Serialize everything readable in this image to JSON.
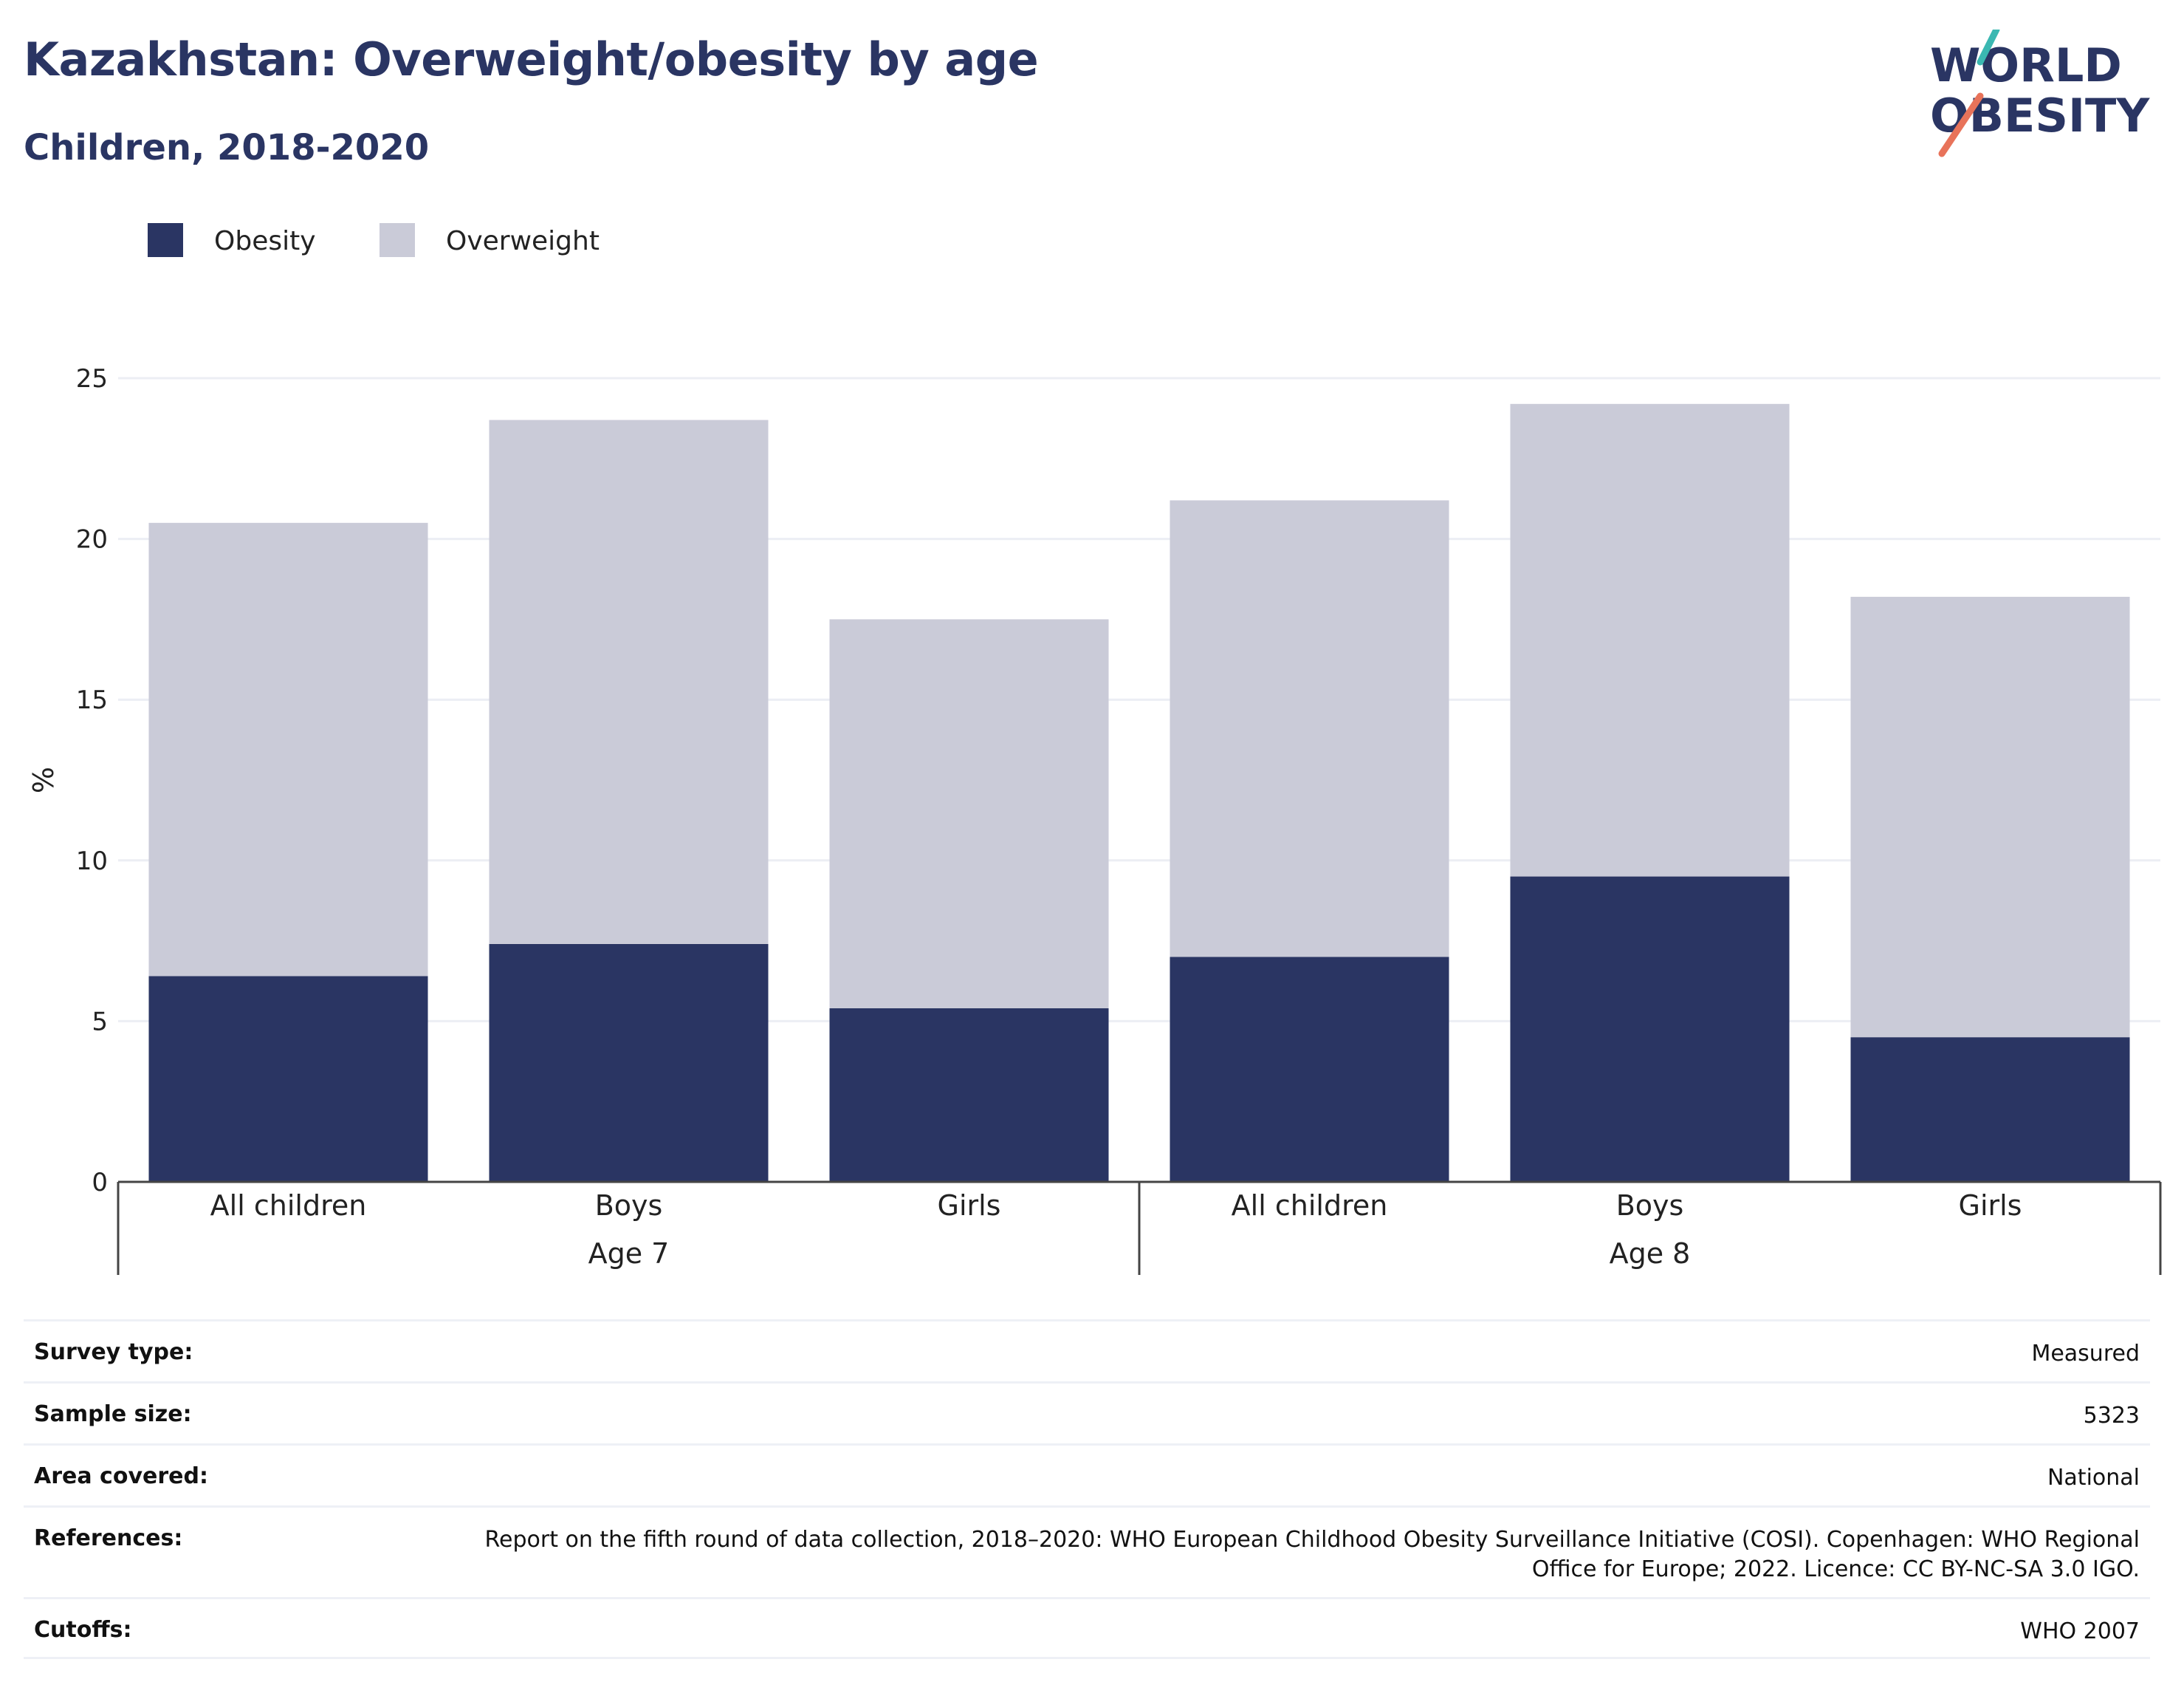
{
  "header": {
    "title": "Kazakhstan: Overweight/obesity by age",
    "subtitle": "Children, 2018-2020"
  },
  "logo": {
    "line1": "WORLD",
    "line2": "OBESITY",
    "accent_teal": "#3bb8b2",
    "accent_coral": "#e8735a"
  },
  "colors": {
    "obesity": "#2a3563",
    "overweight": "#cacbd8",
    "title": "#2a3563",
    "grid": "#eceef4"
  },
  "chart_data": {
    "type": "bar",
    "stacked": true,
    "ylabel": "%",
    "ylim": [
      0,
      25
    ],
    "yticks": [
      0,
      5,
      10,
      15,
      20,
      25
    ],
    "grid": true,
    "legend_position": "top-left",
    "categories": [
      "All children",
      "Boys",
      "Girls",
      "All children",
      "Boys",
      "Girls"
    ],
    "groups": [
      {
        "label": "Age 7",
        "categories": [
          0,
          1,
          2
        ]
      },
      {
        "label": "Age 8",
        "categories": [
          3,
          4,
          5
        ]
      }
    ],
    "series": [
      {
        "name": "Obesity",
        "values": [
          6.4,
          7.4,
          5.4,
          7.0,
          9.5,
          4.5
        ]
      },
      {
        "name": "Overweight",
        "values": [
          14.1,
          16.3,
          12.1,
          14.2,
          14.7,
          13.7
        ]
      }
    ]
  },
  "info": [
    {
      "label": "Survey type:",
      "value": "Measured"
    },
    {
      "label": "Sample size:",
      "value": "5323"
    },
    {
      "label": "Area covered:",
      "value": "National"
    },
    {
      "label": "References:",
      "value": "Report on the fifth round of data collection, 2018–2020: WHO European Childhood Obesity Surveillance Initiative (COSI). Copenhagen: WHO Regional Office for Europe; 2022. Licence: CC BY-NC-SA 3.0 IGO."
    },
    {
      "label": "Cutoffs:",
      "value": "WHO 2007"
    }
  ]
}
